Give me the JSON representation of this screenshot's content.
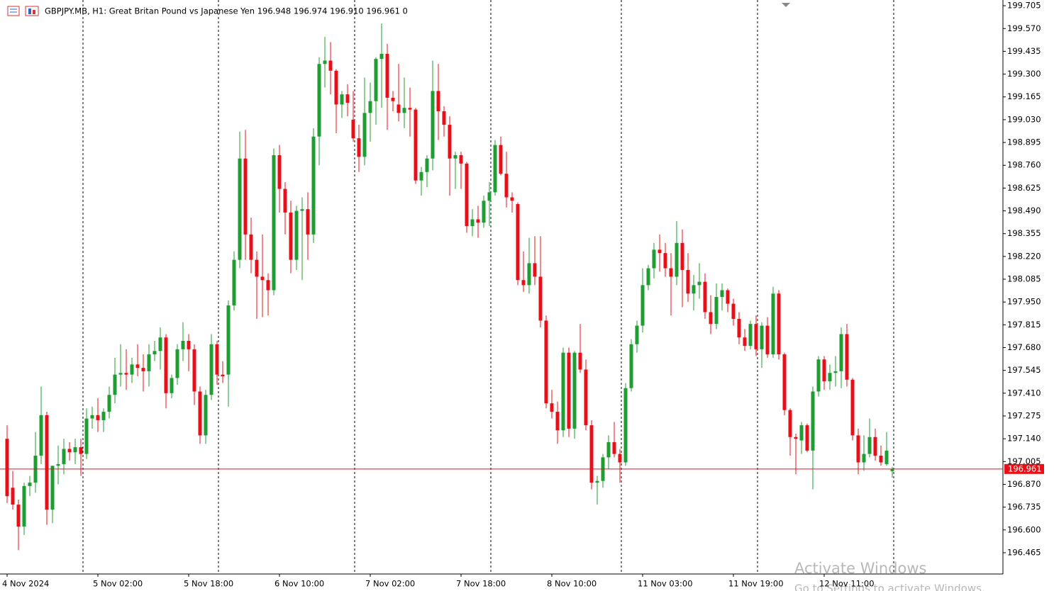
{
  "chart_data": {
    "type": "candlestick",
    "title": "GBPJPY.MB, H1:  Great Britan Pound vs Japanese Yen  196.948 196.974 196.910 196.961  0",
    "categories": [
      "4 Nov 2024",
      null,
      null,
      null,
      null,
      null,
      null,
      null,
      null,
      null,
      null,
      null,
      null,
      null,
      null,
      null,
      "5 Nov 02:00",
      null,
      null,
      null,
      null,
      null,
      null,
      null,
      null,
      null,
      null,
      null,
      null,
      null,
      null,
      null,
      "5 Nov 18:00",
      null,
      null,
      null,
      null,
      null,
      null,
      null,
      null,
      null,
      null,
      null,
      null,
      null,
      null,
      null,
      "6 Nov 10:00",
      null,
      null,
      null,
      null,
      null,
      null,
      null,
      null,
      null,
      null,
      null,
      null,
      null,
      null,
      null,
      "7 Nov 02:00",
      null,
      null,
      null,
      null,
      null,
      null,
      null,
      null,
      null,
      null,
      null,
      null,
      null,
      null,
      null,
      "7 Nov 18:00",
      null,
      null,
      null,
      null,
      null,
      null,
      null,
      null,
      null,
      null,
      null,
      null,
      null,
      null,
      null,
      "8 Nov 10:00",
      null,
      null,
      null,
      null,
      null,
      null,
      null,
      null,
      null,
      null,
      null,
      null,
      null,
      null,
      null,
      "11 Nov 03:00",
      null,
      null,
      null,
      null,
      null,
      null,
      null,
      null,
      null,
      null,
      null,
      null,
      null,
      null,
      null,
      "11 Nov 19:00",
      null,
      null,
      null,
      null,
      null,
      null,
      null,
      null,
      null,
      null,
      null,
      null,
      null,
      null,
      null,
      "12 Nov 11:00",
      null,
      null,
      null,
      null,
      null,
      null,
      null,
      null,
      null,
      null,
      null,
      null
    ],
    "open": [
      197.14,
      196.85,
      196.75,
      196.62,
      196.86,
      196.88,
      197.04,
      197.28,
      196.72,
      196.98,
      196.99,
      197.08,
      197.06,
      197.09,
      197.05,
      197.26,
      197.28,
      197.25,
      197.3,
      197.4,
      197.52,
      197.53,
      197.52,
      197.58,
      197.56,
      197.54,
      197.64,
      197.66,
      197.74,
      197.41,
      197.5,
      197.67,
      197.72,
      197.67,
      197.42,
      197.16,
      197.4,
      197.7,
      197.52,
      197.52,
      197.93,
      198.2,
      198.8,
      198.35,
      198.2,
      198.1,
      198.08,
      198.02,
      198.82,
      198.62,
      198.48,
      198.2,
      198.49,
      198.5,
      198.35,
      198.93,
      199.36,
      199.38,
      199.32,
      199.12,
      199.18,
      199.03,
      198.92,
      198.81,
      199.07,
      199.14,
      199.39,
      199.42,
      199.16,
      199.12,
      199.07,
      199.1,
      199.09,
      198.67,
      198.72,
      198.8,
      199.2,
      199.08,
      199.0,
      198.8,
      198.82,
      198.77,
      198.4,
      198.44,
      198.42,
      198.55,
      198.6,
      198.88,
      198.71,
      198.57,
      198.53,
      198.08,
      198.05,
      198.18,
      198.1,
      197.84,
      197.35,
      197.3,
      197.19,
      197.65,
      197.2,
      197.65,
      197.55,
      197.22,
      196.88,
      196.89,
      197.03,
      197.12,
      197.05,
      197.0,
      197.44,
      197.7,
      197.81,
      198.05,
      198.15,
      198.26,
      198.24,
      198.15,
      198.1,
      198.3,
      198.14,
      198.0,
      198.05,
      198.07,
      197.89,
      197.82,
      197.98,
      198.02,
      197.94,
      197.85,
      197.74,
      197.69,
      197.82,
      197.67,
      197.81,
      197.64,
      198.0,
      197.64,
      197.31,
      197.15,
      197.13,
      197.22,
      197.07,
      197.42,
      197.61,
      197.48,
      197.53,
      197.54,
      197.76,
      197.49,
      197.16,
      197.0,
      197.05,
      197.15,
      197.04,
      196.99,
      196.948
    ],
    "high": [
      197.22,
      196.95,
      196.78,
      196.88,
      196.92,
      197.18,
      197.45,
      197.3,
      196.97,
      197.1,
      197.14,
      197.12,
      197.14,
      197.14,
      197.32,
      197.33,
      197.38,
      197.32,
      197.45,
      197.62,
      197.7,
      197.67,
      197.62,
      197.7,
      197.64,
      197.7,
      197.72,
      197.8,
      197.76,
      197.52,
      197.7,
      197.83,
      197.76,
      197.7,
      197.45,
      197.43,
      197.76,
      197.72,
      197.6,
      197.96,
      198.25,
      198.96,
      198.97,
      198.45,
      198.25,
      198.35,
      198.12,
      198.86,
      198.88,
      198.66,
      198.55,
      198.52,
      198.57,
      198.6,
      198.98,
      199.4,
      199.52,
      199.49,
      199.33,
      199.2,
      199.24,
      199.2,
      199.0,
      199.28,
      199.25,
      199.4,
      199.6,
      199.48,
      199.2,
      199.36,
      199.28,
      199.22,
      199.1,
      198.75,
      198.82,
      199.38,
      199.36,
      199.11,
      199.05,
      198.84,
      198.84,
      198.78,
      198.5,
      198.52,
      198.58,
      198.66,
      198.91,
      198.93,
      198.84,
      198.6,
      198.54,
      198.25,
      198.33,
      198.34,
      198.34,
      197.87,
      197.43,
      197.36,
      197.68,
      197.68,
      197.66,
      197.82,
      197.61,
      197.25,
      196.92,
      197.05,
      197.16,
      197.24,
      197.08,
      197.47,
      197.73,
      197.84,
      198.15,
      198.17,
      198.3,
      198.35,
      198.3,
      198.24,
      198.43,
      198.38,
      198.24,
      198.11,
      198.18,
      198.12,
      197.99,
      198.06,
      198.06,
      198.03,
      197.97,
      197.89,
      197.79,
      197.84,
      197.87,
      197.83,
      197.86,
      198.04,
      198.02,
      197.65,
      197.32,
      197.17,
      197.24,
      197.23,
      197.45,
      197.63,
      197.63,
      197.58,
      197.63,
      197.8,
      197.82,
      197.5,
      197.2,
      197.16,
      197.26,
      197.2,
      197.1,
      197.18,
      196.974
    ],
    "low": [
      196.76,
      196.72,
      196.48,
      196.57,
      196.8,
      196.82,
      196.99,
      196.63,
      196.64,
      196.87,
      196.93,
      197.01,
      196.99,
      196.92,
      197.02,
      197.2,
      197.18,
      197.18,
      197.26,
      197.35,
      197.45,
      197.43,
      197.47,
      197.51,
      197.42,
      197.45,
      197.6,
      197.55,
      197.32,
      197.38,
      197.46,
      197.6,
      197.54,
      197.34,
      197.11,
      197.11,
      197.37,
      197.46,
      197.47,
      197.33,
      197.9,
      198.15,
      198.2,
      198.12,
      197.85,
      197.86,
      197.87,
      197.99,
      198.48,
      198.35,
      198.12,
      198.14,
      198.08,
      198.2,
      198.3,
      198.76,
      199.22,
      199.18,
      198.95,
      199.04,
      199.05,
      198.9,
      198.72,
      198.76,
      198.9,
      199.0,
      199.1,
      198.97,
      199.08,
      199.02,
      198.98,
      198.93,
      198.65,
      198.58,
      198.63,
      198.73,
      198.91,
      198.93,
      198.58,
      198.62,
      198.62,
      198.36,
      198.34,
      198.33,
      198.39,
      198.4,
      198.58,
      198.7,
      198.51,
      198.48,
      198.05,
      198.01,
      198.0,
      198.05,
      197.8,
      197.32,
      197.26,
      197.11,
      197.15,
      197.15,
      197.14,
      197.53,
      197.19,
      196.84,
      196.75,
      196.85,
      196.96,
      197.03,
      196.88,
      196.98,
      197.42,
      197.65,
      197.77,
      198.02,
      198.09,
      198.13,
      198.1,
      197.87,
      198.05,
      197.92,
      197.95,
      197.9,
      197.97,
      197.85,
      197.76,
      197.79,
      197.9,
      197.89,
      197.81,
      197.7,
      197.66,
      197.67,
      197.63,
      197.56,
      197.62,
      197.62,
      197.61,
      197.28,
      197.04,
      196.93,
      197.05,
      197.06,
      196.84,
      197.39,
      197.43,
      197.43,
      197.45,
      197.44,
      197.45,
      197.13,
      196.93,
      196.95,
      197.03,
      197.01,
      196.98,
      196.98,
      196.91
    ],
    "close": [
      196.8,
      196.75,
      196.62,
      196.86,
      196.88,
      197.04,
      197.28,
      196.72,
      196.98,
      196.99,
      197.08,
      197.06,
      197.09,
      197.05,
      197.26,
      197.28,
      197.25,
      197.3,
      197.4,
      197.52,
      197.53,
      197.52,
      197.58,
      197.56,
      197.54,
      197.64,
      197.66,
      197.74,
      197.41,
      197.5,
      197.67,
      197.72,
      197.67,
      197.42,
      197.16,
      197.4,
      197.7,
      197.52,
      197.51,
      197.93,
      198.2,
      198.8,
      198.35,
      198.2,
      198.1,
      198.08,
      198.02,
      198.82,
      198.62,
      198.48,
      198.2,
      198.49,
      198.5,
      198.35,
      198.93,
      199.36,
      199.38,
      199.32,
      199.12,
      199.18,
      199.13,
      198.92,
      198.81,
      199.07,
      199.14,
      199.39,
      199.42,
      199.16,
      199.14,
      199.07,
      199.1,
      199.09,
      198.67,
      198.72,
      198.8,
      199.2,
      199.08,
      199.0,
      198.8,
      198.82,
      198.77,
      198.4,
      198.44,
      198.42,
      198.55,
      198.6,
      198.88,
      198.71,
      198.57,
      198.55,
      198.08,
      198.05,
      198.18,
      198.1,
      197.84,
      197.35,
      197.3,
      197.19,
      197.65,
      197.2,
      197.65,
      197.55,
      197.22,
      196.88,
      196.89,
      197.03,
      197.12,
      197.05,
      197.0,
      197.44,
      197.7,
      197.81,
      198.05,
      198.15,
      198.26,
      198.24,
      198.15,
      198.1,
      198.3,
      198.14,
      198.0,
      198.05,
      198.07,
      197.89,
      197.82,
      197.98,
      198.02,
      197.94,
      197.85,
      197.74,
      197.69,
      197.82,
      197.67,
      197.81,
      197.64,
      198.0,
      197.64,
      197.31,
      197.15,
      197.14,
      197.22,
      197.07,
      197.42,
      197.61,
      197.48,
      197.53,
      197.54,
      197.76,
      197.49,
      197.16,
      197.0,
      197.05,
      197.15,
      197.04,
      197.0,
      197.07,
      196.961
    ],
    "up_color": "#1f9d33",
    "down_color": "#e81018",
    "current_price": 196.961,
    "current_price_color": "#e81018",
    "ylim": [
      196.339,
      199.739
    ],
    "yticks": [
      199.705,
      {
        "value": 199.57,
        "label": "199.570"
      },
      199.435,
      {
        "value": 199.3,
        "label": "199.300"
      },
      199.165,
      {
        "value": 199.03,
        "label": "199.030"
      },
      198.895,
      {
        "value": 198.76,
        "label": "198.760"
      },
      198.625,
      {
        "value": 198.49,
        "label": "198.490"
      },
      198.355,
      {
        "value": 198.22,
        "label": "198.220"
      },
      198.085,
      {
        "value": 197.95,
        "label": "197.950"
      },
      197.815,
      {
        "value": 197.68,
        "label": "197.680"
      },
      197.545,
      {
        "value": 197.41,
        "label": "197.410"
      },
      197.275,
      {
        "value": 197.14,
        "label": "197.140"
      },
      197.005,
      {
        "value": 196.87,
        "label": "196.870"
      },
      196.735,
      {
        "value": 196.6,
        "label": "196.600"
      },
      196.465
    ],
    "watermark": [
      "Activate Windows",
      "Go to Settings to activate Windows."
    ]
  }
}
